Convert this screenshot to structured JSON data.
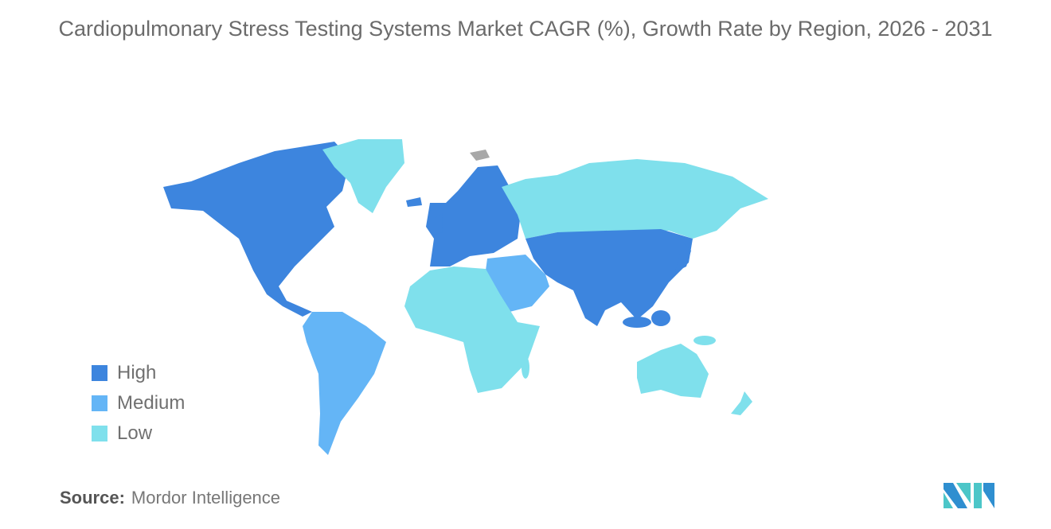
{
  "title": "Cardiopulmonary Stress Testing Systems Market CAGR (%), Growth Rate by Region, 2026 - 2031",
  "legend": [
    {
      "label": "High",
      "color": "#3d85de"
    },
    {
      "label": "Medium",
      "color": "#64b5f6"
    },
    {
      "label": "Low",
      "color": "#7fe0ec"
    }
  ],
  "no_data_color": "#a8a8a8",
  "regions": {
    "north_america": "High",
    "europe": "High",
    "asia_pacific_core": "High",
    "south_america": "Medium",
    "middle_east": "Medium",
    "russia": "Low",
    "greenland": "Low",
    "africa": "Low",
    "australia_nz": "Low"
  },
  "source": {
    "label": "Source:",
    "value": "Mordor Intelligence"
  },
  "logo": "Mordor Intelligence logo"
}
